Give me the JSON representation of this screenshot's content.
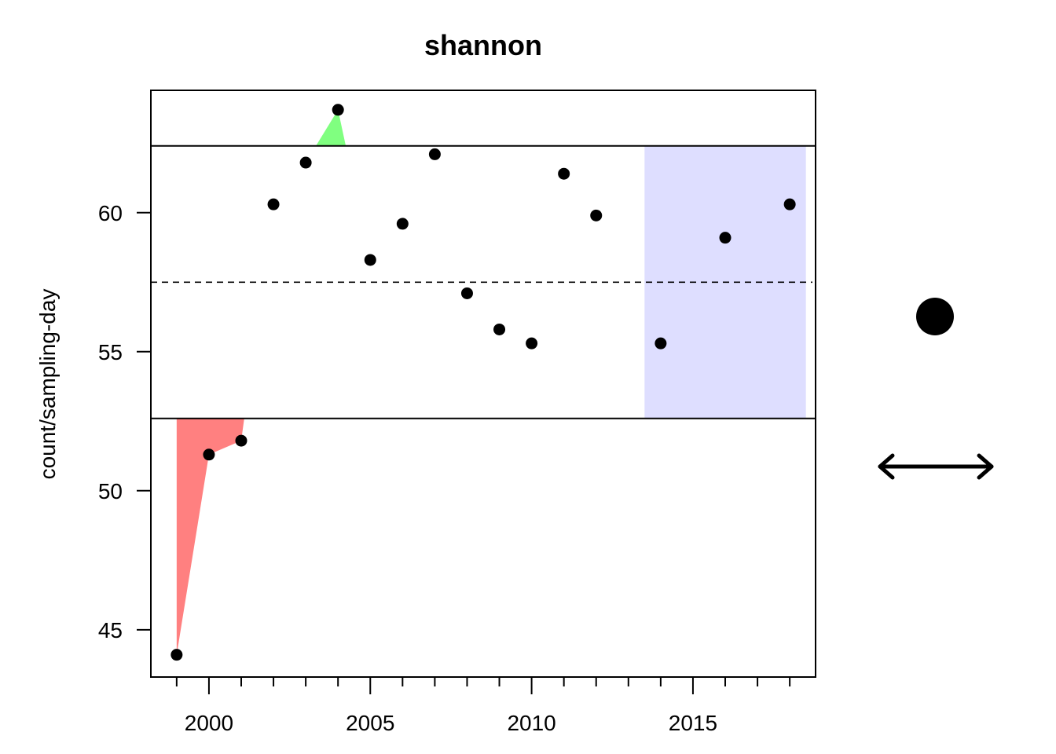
{
  "chart_data": {
    "type": "scatter",
    "title": "shannon",
    "xlabel": "",
    "ylabel": "count/sampling-day",
    "xlim": [
      1998.2,
      2018.8
    ],
    "ylim": [
      43.3,
      64.4
    ],
    "x_ticks": [
      2000,
      2005,
      2010,
      2015
    ],
    "x_tick_labels": [
      "2000",
      "2005",
      "2010",
      "2015"
    ],
    "x_minor_ticks": [
      1999,
      2001,
      2002,
      2003,
      2004,
      2006,
      2007,
      2008,
      2009,
      2011,
      2012,
      2013,
      2014,
      2016,
      2017,
      2018
    ],
    "y_ticks": [
      45,
      50,
      55,
      60
    ],
    "y_tick_labels": [
      "45",
      "50",
      "55",
      "60"
    ],
    "series": [
      {
        "x": [
          1999,
          2000,
          2001,
          2002,
          2003,
          2004,
          2005,
          2006,
          2007,
          2008,
          2009,
          2010,
          2011,
          2012,
          2014,
          2016,
          2018
        ],
        "values": [
          44.1,
          51.3,
          51.8,
          60.3,
          61.8,
          63.7,
          58.3,
          59.6,
          62.1,
          57.1,
          55.8,
          55.3,
          61.4,
          59.9,
          55.3,
          59.1,
          60.3
        ]
      }
    ],
    "mean_line": 57.5,
    "upper_bound": 62.4,
    "lower_bound": 52.6,
    "highlight_x_range": [
      2013.5,
      2018.5
    ],
    "colors": {
      "points": "#000000",
      "above_fill": "#80ff80",
      "below_fill": "#ff8080",
      "highlight": "#dedeff",
      "lines": "#000000"
    },
    "legend": {
      "items": [
        {
          "icon": "filled-circle-icon"
        },
        {
          "icon": "double-arrow-icon"
        }
      ]
    },
    "grid": false
  }
}
